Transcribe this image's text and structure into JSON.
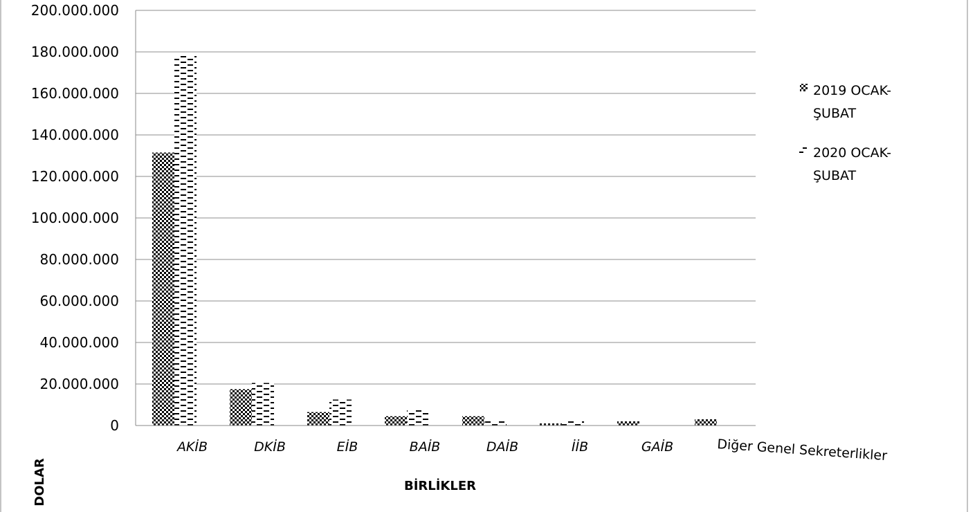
{
  "chart_data": {
    "type": "bar",
    "xlabel": "BİRLİKLER",
    "ylabel": "DOLAR",
    "ylim": [
      0,
      200000000
    ],
    "ytick_step": 20000000,
    "yticks": [
      "0",
      "20.000.000",
      "40.000.000",
      "60.000.000",
      "80.000.000",
      "100.000.000",
      "120.000.000",
      "140.000.000",
      "160.000.000",
      "180.000.000",
      "200.000.000"
    ],
    "categories": [
      "AKİB",
      "DKİB",
      "EİB",
      "BAİB",
      "DAİB",
      "İİB",
      "GAİB",
      "Diğer Genel Sekreterlikler"
    ],
    "series": [
      {
        "name": "2019 OCAK-ŞUBAT",
        "legend_lines": [
          "2019 OCAK-",
          "ŞUBAT"
        ],
        "pattern": "checker",
        "values": [
          131500000,
          17500000,
          6500000,
          4500000,
          4500000,
          1000000,
          2000000,
          3000000
        ]
      },
      {
        "name": "2020 OCAK-ŞUBAT",
        "legend_lines": [
          "2020 OCAK-",
          "ŞUBAT"
        ],
        "pattern": "dash",
        "values": [
          178000000,
          20500000,
          12500000,
          7500000,
          2000000,
          2000000,
          0,
          0
        ]
      }
    ],
    "grid": true,
    "legend_position": "right"
  }
}
